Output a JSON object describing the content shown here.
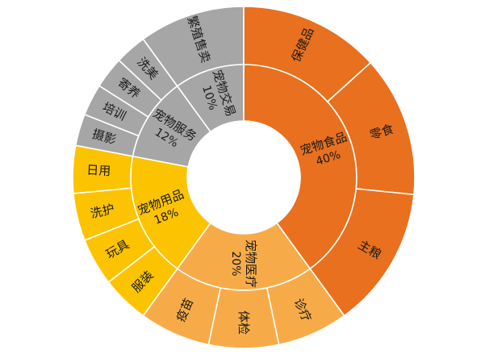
{
  "chart_data": {
    "type": "sunburst",
    "start_angle_deg": 0,
    "direction": "clockwise",
    "colors": {
      "宠物食品": "#E8701E",
      "宠物医疗": "#F7AB48",
      "宠物用品": "#FCC300",
      "宠物服务": "#A6A6A6",
      "宠物交易": "#A6A6A6"
    },
    "categories": [
      {
        "name": "宠物食品",
        "percent": "40%",
        "value": 40,
        "children": [
          {
            "name": "保健品",
            "value": 13.3
          },
          {
            "name": "零食",
            "value": 13.3
          },
          {
            "name": "主粮",
            "value": 13.4
          }
        ]
      },
      {
        "name": "宠物医疗",
        "percent": "20%",
        "value": 20,
        "children": [
          {
            "name": "诊疗",
            "value": 6.7
          },
          {
            "name": "体检",
            "value": 6.6
          },
          {
            "name": "疫苗",
            "value": 6.7
          }
        ]
      },
      {
        "name": "宠物用品",
        "percent": "18%",
        "value": 18,
        "children": [
          {
            "name": "服装",
            "value": 4.5
          },
          {
            "name": "玩具",
            "value": 4.5
          },
          {
            "name": "洗护",
            "value": 4.5
          },
          {
            "name": "日用",
            "value": 4.5
          }
        ]
      },
      {
        "name": "宠物服务",
        "percent": "12%",
        "value": 12,
        "children": [
          {
            "name": "摄影",
            "value": 3
          },
          {
            "name": "培训",
            "value": 3
          },
          {
            "name": "寄养",
            "value": 3
          },
          {
            "name": "洗美",
            "value": 3
          }
        ]
      },
      {
        "name": "宠物交易",
        "percent": "10%",
        "value": 10,
        "children": [
          {
            "name": "繁殖售卖",
            "value": 10
          }
        ]
      }
    ]
  }
}
